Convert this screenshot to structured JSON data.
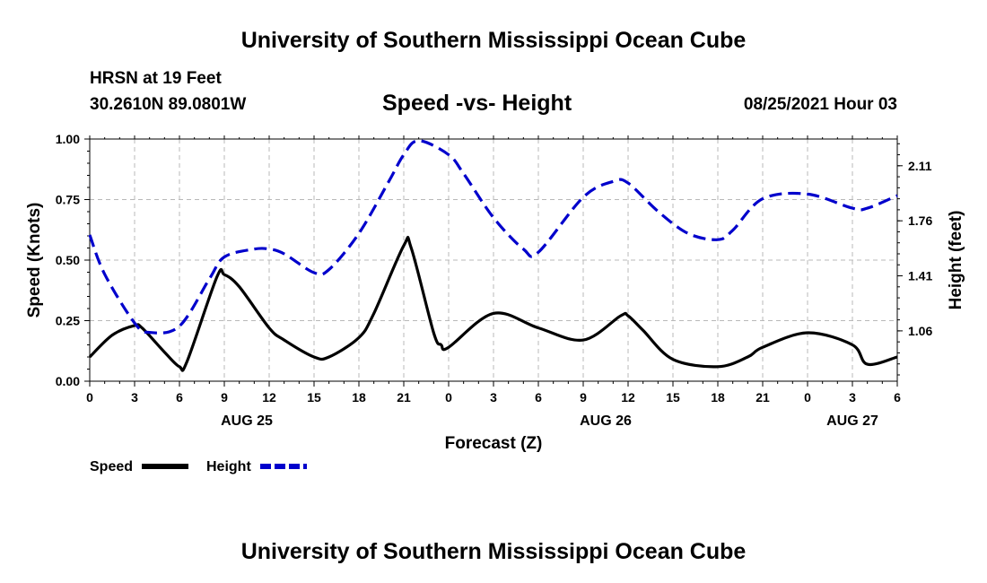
{
  "header": {
    "title": "University of Southern Mississippi Ocean Cube",
    "station": "HRSN at 19 Feet",
    "coords": "30.2610N  89.0801W",
    "subtitle": "Speed -vs- Height",
    "datetime": "08/25/2021 Hour 03"
  },
  "footer": {
    "title": "University of Southern Mississippi Ocean Cube"
  },
  "chart_data": {
    "type": "line",
    "title": "Speed -vs- Height",
    "xlabel": "Forecast (Z)",
    "ylabel_left": "Speed (Knots)",
    "ylabel_right": "Height (feet)",
    "xlim": [
      0,
      54
    ],
    "ylim_left": [
      0,
      1
    ],
    "ylim_right": [
      0.74,
      2.28
    ],
    "x_ticks": [
      0,
      3,
      6,
      9,
      12,
      15,
      18,
      21,
      24,
      27,
      30,
      33,
      36,
      39,
      42,
      45,
      48,
      51,
      54
    ],
    "x_tick_labels": [
      "0",
      "3",
      "6",
      "9",
      "12",
      "15",
      "18",
      "21",
      "0",
      "3",
      "6",
      "9",
      "12",
      "15",
      "18",
      "21",
      "0",
      "3",
      "6"
    ],
    "y_left_ticks": [
      "0.00",
      "0.25",
      "0.50",
      "0.75",
      "1.00"
    ],
    "y_right_ticks": [
      "1.06",
      "1.41",
      "1.76",
      "2.11"
    ],
    "date_labels": [
      {
        "x": 10.5,
        "label": "AUG 25"
      },
      {
        "x": 34.5,
        "label": "AUG 26"
      },
      {
        "x": 51,
        "label": "AUG 27"
      }
    ],
    "grid": true,
    "legend_position": "bottom-left",
    "series": [
      {
        "name": "Speed",
        "axis": "left",
        "color": "#000000",
        "style": "solid",
        "x": [
          0,
          1.5,
          3,
          3.5,
          5,
          6,
          6.5,
          8.5,
          9,
          10,
          12,
          13,
          15,
          16,
          18,
          19,
          21,
          21.5,
          23,
          23.5,
          24,
          27,
          30,
          33,
          35.5,
          36,
          37,
          39,
          42,
          44,
          45,
          48,
          51,
          52,
          54
        ],
        "values": [
          0.1,
          0.19,
          0.23,
          0.22,
          0.12,
          0.06,
          0.08,
          0.43,
          0.44,
          0.39,
          0.22,
          0.17,
          0.1,
          0.1,
          0.18,
          0.28,
          0.56,
          0.55,
          0.2,
          0.15,
          0.14,
          0.28,
          0.22,
          0.17,
          0.27,
          0.27,
          0.21,
          0.09,
          0.06,
          0.1,
          0.14,
          0.2,
          0.15,
          0.07,
          0.1
        ]
      },
      {
        "name": "Height",
        "axis": "right",
        "color": "#0000cc",
        "style": "dashed",
        "x": [
          0,
          1,
          3,
          4,
          6,
          8,
          9,
          11,
          12,
          13,
          15,
          16,
          18,
          20,
          21,
          22,
          24,
          25,
          27,
          29,
          30,
          33,
          35,
          36,
          38,
          40,
          42,
          43,
          45,
          48,
          51,
          52,
          54
        ],
        "values": [
          1.67,
          1.42,
          1.11,
          1.05,
          1.09,
          1.39,
          1.53,
          1.58,
          1.58,
          1.55,
          1.43,
          1.45,
          1.68,
          2.01,
          2.18,
          2.27,
          2.18,
          2.06,
          1.78,
          1.58,
          1.56,
          1.91,
          2.01,
          2.0,
          1.82,
          1.68,
          1.64,
          1.7,
          1.9,
          1.93,
          1.84,
          1.84,
          1.92
        ]
      }
    ]
  }
}
